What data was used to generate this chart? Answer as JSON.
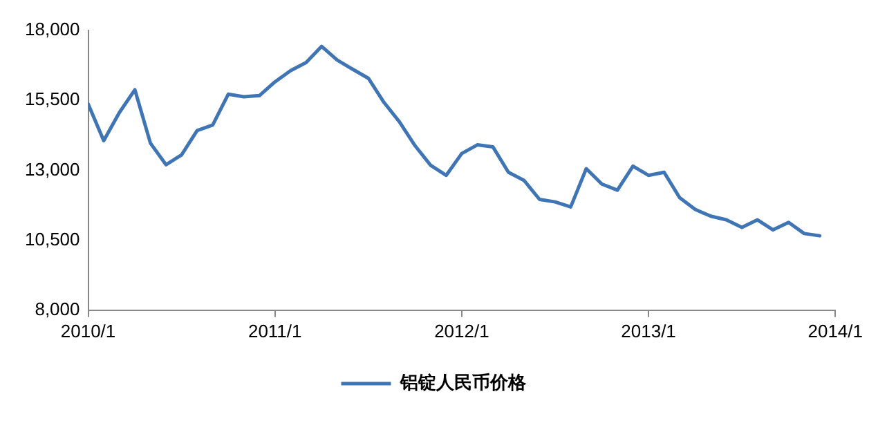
{
  "chart_data": {
    "type": "line",
    "x": [
      "2010-01",
      "2010-02",
      "2010-03",
      "2010-04",
      "2010-05",
      "2010-06",
      "2010-07",
      "2010-08",
      "2010-09",
      "2010-10",
      "2010-11",
      "2010-12",
      "2011-01",
      "2011-02",
      "2011-03",
      "2011-04",
      "2011-05",
      "2011-06",
      "2011-07",
      "2011-08",
      "2011-09",
      "2011-10",
      "2011-11",
      "2011-12",
      "2012-01",
      "2012-02",
      "2012-03",
      "2012-04",
      "2012-05",
      "2012-06",
      "2012-07",
      "2012-08",
      "2012-09",
      "2012-10",
      "2012-11",
      "2012-12",
      "2013-01",
      "2013-02",
      "2013-03",
      "2013-04",
      "2013-05",
      "2013-06",
      "2013-07",
      "2013-08",
      "2013-09",
      "2013-10",
      "2013-11",
      "2013-12"
    ],
    "series": [
      {
        "name": "铝锭人民币价格",
        "color": "#3f74b5",
        "values": [
          15370,
          14060,
          15060,
          15880,
          13970,
          13200,
          13550,
          14420,
          14620,
          15720,
          15630,
          15670,
          16160,
          16560,
          16850,
          17430,
          16940,
          16610,
          16290,
          15430,
          14730,
          13880,
          13180,
          12820,
          13600,
          13910,
          13840,
          12930,
          12640,
          11960,
          11870,
          11690,
          13060,
          12510,
          12290,
          13150,
          12820,
          12930,
          12020,
          11600,
          11360,
          11230,
          10960,
          11230,
          10870,
          11140,
          10740,
          10660
        ]
      }
    ],
    "xlim": [
      "2010-01",
      "2014-01"
    ],
    "xticks": [
      {
        "value": "2010-01",
        "label": "2010/1"
      },
      {
        "value": "2011-01",
        "label": "2011/1"
      },
      {
        "value": "2012-01",
        "label": "2012/1"
      },
      {
        "value": "2013-01",
        "label": "2013/1"
      },
      {
        "value": "2014-01",
        "label": "2014/1"
      }
    ],
    "ylim": [
      8000,
      18000
    ],
    "yticks": [
      {
        "value": 8000,
        "label": "8,000"
      },
      {
        "value": 10500,
        "label": "10,500"
      },
      {
        "value": 13000,
        "label": "13,000"
      },
      {
        "value": 15500,
        "label": "15,500"
      },
      {
        "value": 18000,
        "label": "18,000"
      }
    ],
    "grid": false,
    "legend": "bottom",
    "marker": "none",
    "line_style": "solid"
  }
}
